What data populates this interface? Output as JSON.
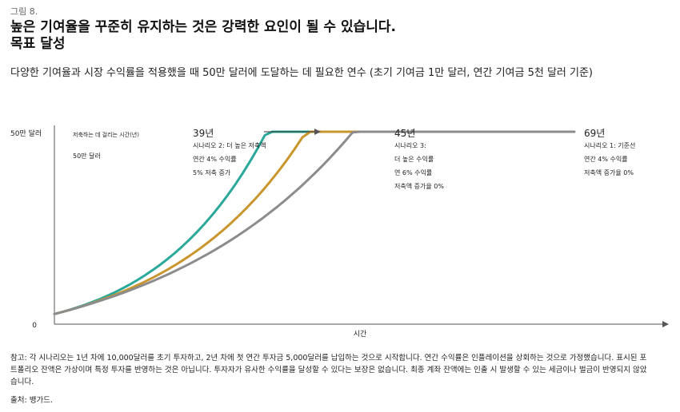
{
  "figure_label": "그림 8.",
  "title_line1": "높은 기여율을 꾸준히 유지하는 것은 강력한 요인이 될 수 있습니다.",
  "title_line2": "목표 달성",
  "subtitle": "다양한 기여율과 시장 수익률을 적용했을 때 50만 달러에 도달하는 데 필요한 연수 (초기 기여금 1만 달러, 연간 기여금 5천 달러 기준)",
  "note": "참고: 각 시나리오는 1년 차에 10,000달러를 초기 투자하고, 2년 차에 첫 연간 투자금 5,000달러를 납입하는 것으로 시작합니다. 연간 수익률은 인플레이션을 상회하는 것으로 가정했습니다. 표시된 포트폴리오 잔액은 가상이며 특정 투자를 반영하는 것은 아닙니다. 투자자가 유사한 수익률을 달성할 수 있다는 보장은 없습니다. 최종 계좌 잔액에는 인출 시 발생할 수 있는 세금이나 벌금이 반영되지 않았습니다.",
  "source": "출처: 뱅가드.",
  "colors": {
    "scenario2": "#2aa89a",
    "scenario3": "#c9962e",
    "scenario1": "#8c8c8c",
    "axis": "#555555",
    "arrow": "#333333"
  },
  "chart_data": {
    "type": "line",
    "title": "",
    "xlabel": "시간",
    "ylabel": "",
    "y_ticks": [
      "0",
      "50만 달러"
    ],
    "ylim": [
      0,
      500000
    ],
    "inner_labels": [
      "저축하는 데 걸리는 시간(년)",
      "50만 달러"
    ],
    "series": [
      {
        "key": "scenario2",
        "years": 39,
        "annotation": [
          "39년",
          "시나리오 2: 더 높은 저축액",
          "연간 4% 수익률",
          "5% 저축 증가"
        ]
      },
      {
        "key": "scenario3",
        "years": 45,
        "annotation": [
          "45년",
          "시나리오 3:",
          "더 높은 수익률",
          "연 6% 수익률",
          "저축액 증가율 0%"
        ]
      },
      {
        "key": "scenario1",
        "years": 69,
        "annotation": [
          "69년",
          "시나리오 1: 기준선",
          "연간 4% 수익률",
          "저축액 증가율 0%"
        ]
      }
    ]
  }
}
